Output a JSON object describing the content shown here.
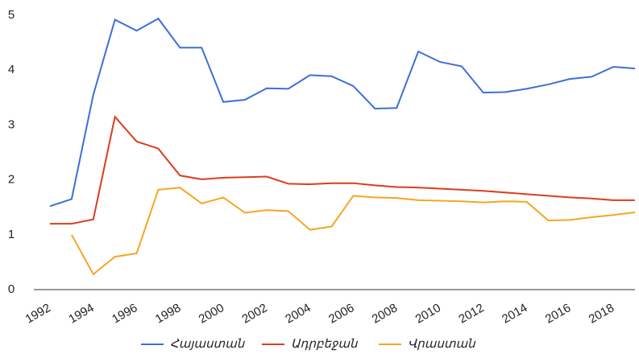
{
  "chart_data": {
    "type": "line",
    "x": [
      1992,
      1993,
      1994,
      1995,
      1996,
      1997,
      1998,
      1999,
      2000,
      2001,
      2002,
      2003,
      2004,
      2005,
      2006,
      2007,
      2008,
      2009,
      2010,
      2011,
      2012,
      2013,
      2014,
      2015,
      2016,
      2017,
      2018,
      2019
    ],
    "series": [
      {
        "name": "Հայաստան",
        "color": "#3d6fd6",
        "values": [
          1.52,
          1.65,
          3.55,
          4.92,
          4.72,
          4.94,
          4.41,
          4.41,
          3.42,
          3.46,
          3.67,
          3.66,
          3.91,
          3.89,
          3.71,
          3.3,
          3.31,
          4.34,
          4.15,
          4.07,
          3.59,
          3.6,
          3.66,
          3.74,
          3.84,
          3.88,
          4.06,
          4.03
        ]
      },
      {
        "name": "Ադրբեջան",
        "color": "#dc3c1e",
        "values": [
          1.2,
          1.2,
          1.28,
          3.15,
          2.7,
          2.57,
          2.08,
          2.01,
          2.04,
          2.05,
          2.06,
          1.93,
          1.92,
          1.94,
          1.94,
          1.9,
          1.87,
          1.86,
          1.84,
          1.82,
          1.8,
          1.77,
          1.74,
          1.71,
          1.68,
          1.66,
          1.63,
          1.63
        ]
      },
      {
        "name": "Վրաստան",
        "color": "#f5a623",
        "values": [
          null,
          1.0,
          0.28,
          0.6,
          0.66,
          1.82,
          1.86,
          1.57,
          1.68,
          1.4,
          1.45,
          1.43,
          1.09,
          1.15,
          1.71,
          1.68,
          1.67,
          1.63,
          1.62,
          1.61,
          1.59,
          1.61,
          1.6,
          1.26,
          1.27,
          1.32,
          1.36,
          1.41
        ]
      }
    ],
    "xlim": [
      1992,
      2019
    ],
    "xticks": [
      1992,
      1994,
      1996,
      1998,
      2000,
      2002,
      2004,
      2006,
      2008,
      2010,
      2012,
      2014,
      2016,
      2018
    ],
    "ylim": [
      0,
      5
    ],
    "yticks": [
      0,
      1,
      2,
      3,
      4,
      5
    ],
    "legend": "bottom"
  }
}
